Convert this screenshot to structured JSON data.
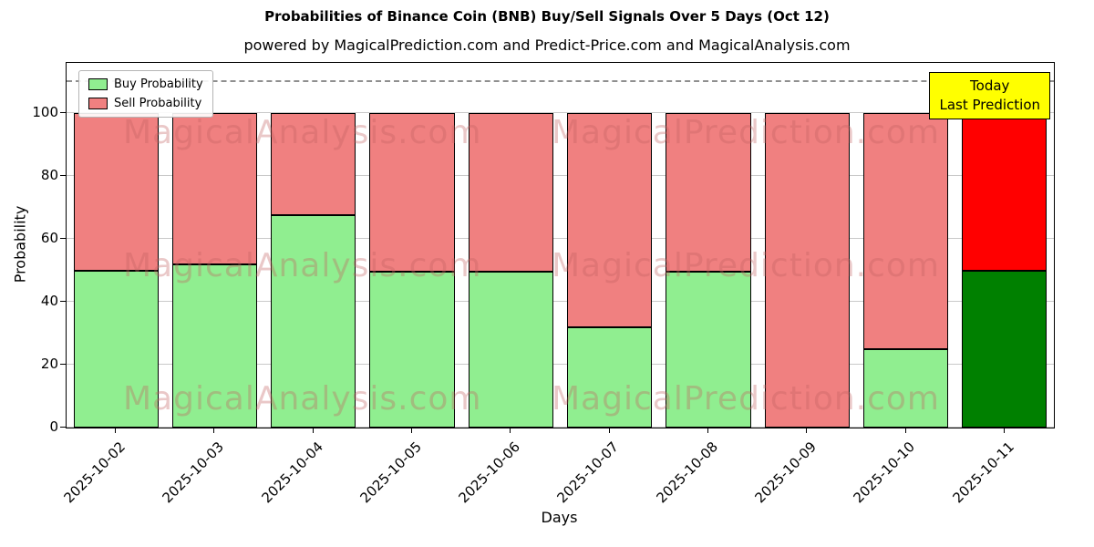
{
  "title": "Probabilities of Binance Coin (BNB) Buy/Sell Signals Over 5 Days (Oct 12)",
  "subtitle": "powered by MagicalPrediction.com and Predict-Price.com and MagicalAnalysis.com",
  "axes": {
    "xlabel": "Days",
    "ylabel": "Probability"
  },
  "annotation": {
    "line1": "Today",
    "line2": "Last Prediction",
    "bg_color": "#ffff00",
    "border_color": "#000000"
  },
  "watermarks": [
    "MagicalAnalysis.com",
    "MagicalPrediction.com"
  ],
  "chart_data": {
    "type": "bar",
    "stacked": true,
    "title": "Probabilities of Binance Coin (BNB) Buy/Sell Signals Over 5 Days (Oct 12)",
    "xlabel": "Days",
    "ylabel": "Probability",
    "categories": [
      "2025-10-02",
      "2025-10-03",
      "2025-10-04",
      "2025-10-05",
      "2025-10-06",
      "2025-10-07",
      "2025-10-08",
      "2025-10-09",
      "2025-10-10",
      "2025-10-11"
    ],
    "series": [
      {
        "name": "Buy Probability",
        "color": "#90ee90",
        "values": [
          50,
          52,
          67.5,
          49.5,
          49.5,
          32,
          49.5,
          0,
          25,
          50
        ]
      },
      {
        "name": "Sell Probability",
        "color": "#f08080",
        "values": [
          50,
          48,
          32.5,
          50.5,
          50.5,
          68,
          50.5,
          100,
          75,
          50
        ]
      }
    ],
    "highlight_last_bar": {
      "buy_color": "#008000",
      "sell_color": "#ff0000"
    },
    "ylim": [
      0,
      116
    ],
    "yticks": [
      0,
      20,
      40,
      60,
      80,
      100
    ],
    "dashed_line_y": 110,
    "grid": true,
    "legend_position": "upper left",
    "bar_edge_color": "#000000"
  }
}
